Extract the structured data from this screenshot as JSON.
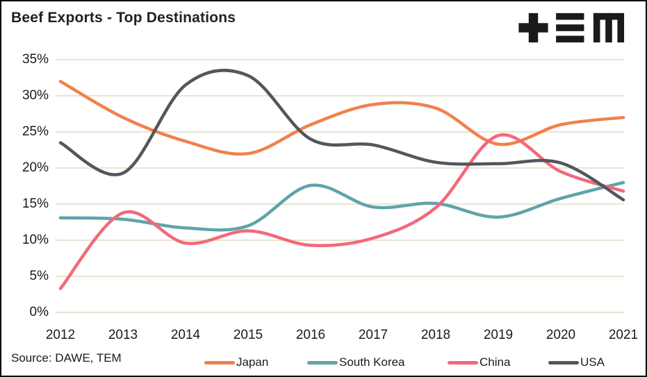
{
  "title": "Beef Exports - Top Destinations",
  "source": "Source: DAWE, TEM",
  "logo": {
    "name": "TEM logo",
    "color": "#1a1a1a"
  },
  "chart_data": {
    "type": "line",
    "title": "Beef Exports - Top Destinations",
    "x": [
      2012,
      2013,
      2014,
      2015,
      2016,
      2017,
      2018,
      2019,
      2020,
      2021
    ],
    "series": [
      {
        "name": "Japan",
        "color": "#F0814B",
        "values": [
          32.0,
          27.0,
          23.7,
          22.0,
          26.0,
          28.8,
          28.3,
          23.3,
          26.0,
          27.0
        ]
      },
      {
        "name": "South Korea",
        "color": "#5FA4A9",
        "values": [
          13.1,
          12.9,
          11.7,
          12.0,
          17.6,
          14.6,
          15.1,
          13.2,
          15.8,
          18.0
        ]
      },
      {
        "name": "China",
        "color": "#F2697A",
        "values": [
          3.3,
          13.8,
          9.6,
          11.3,
          9.3,
          10.3,
          14.5,
          24.5,
          19.5,
          16.8
        ]
      },
      {
        "name": "USA",
        "color": "#53565A",
        "values": [
          23.5,
          19.3,
          31.5,
          32.8,
          24.0,
          23.2,
          20.8,
          20.6,
          20.7,
          15.6
        ]
      }
    ],
    "xlabel": "",
    "ylabel": "",
    "ylim": [
      0,
      35
    ],
    "ytick_step": 5,
    "ytick_suffix": "%",
    "grid": true,
    "gridline_color": "#E8E3D3",
    "line_width": 4.5,
    "legend_position": "bottom",
    "smoothed": true
  }
}
